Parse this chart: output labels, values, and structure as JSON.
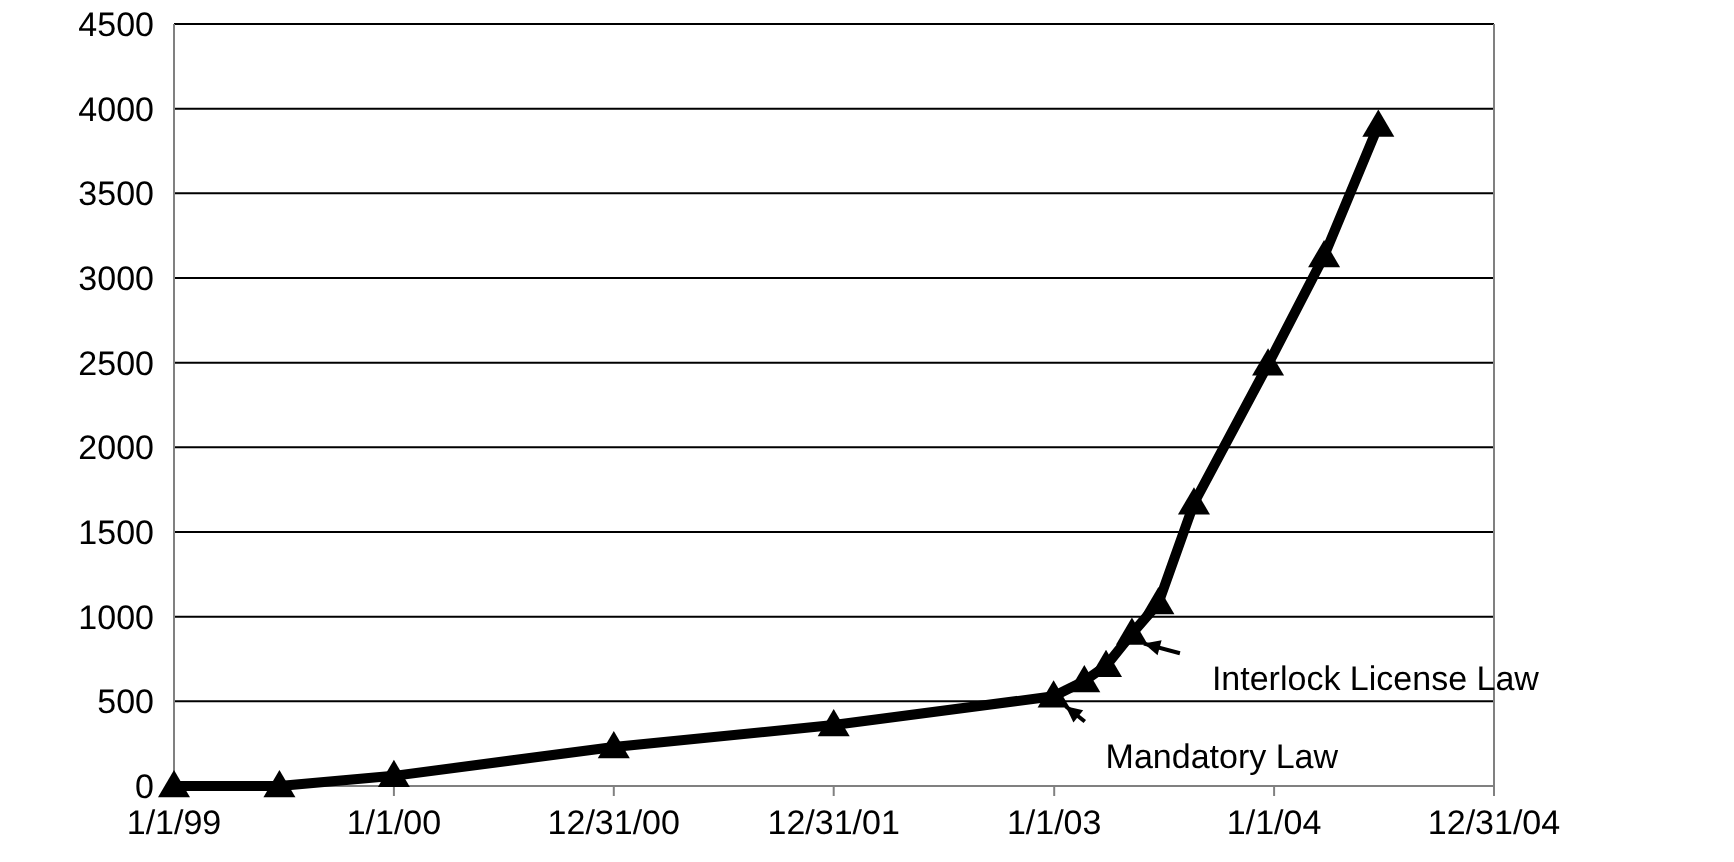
{
  "chart_data": {
    "type": "line",
    "x": [
      "1999-01-01",
      "1999-06-25",
      "2000-01-01",
      "2000-12-31",
      "2001-12-31",
      "2002-12-31",
      "2003-02-20",
      "2003-03-28",
      "2003-05-10",
      "2003-06-23",
      "2003-08-21",
      "2003-12-22",
      "2004-03-24",
      "2004-06-22"
    ],
    "series": [
      {
        "color": "#000000",
        "values": [
          0,
          0,
          60,
          230,
          360,
          530,
          620,
          710,
          900,
          1080,
          1670,
          2490,
          3130,
          3900
        ]
      }
    ],
    "xlim": [
      "1999-01-01",
      "2004-12-31"
    ],
    "xticks": [
      {
        "value": "1999-01-01",
        "label": "1/1/99"
      },
      {
        "value": "2000-01-01",
        "label": "1/1/00"
      },
      {
        "value": "2000-12-31",
        "label": "12/31/00"
      },
      {
        "value": "2001-12-31",
        "label": "12/31/01"
      },
      {
        "value": "2003-01-01",
        "label": "1/1/03"
      },
      {
        "value": "2004-01-01",
        "label": "1/1/04"
      },
      {
        "value": "2004-12-31",
        "label": "12/31/04"
      }
    ],
    "ylim": [
      0,
      4500
    ],
    "yticks": [
      0,
      500,
      1000,
      1500,
      2000,
      2500,
      3000,
      3500,
      4000,
      4500
    ],
    "grid": "y",
    "marker": "triangle",
    "line_style": "solid",
    "annotations": [
      {
        "text": "Interlock License Law",
        "x": "2003-05-10",
        "y": 900
      },
      {
        "text": "Mandatory Law",
        "x": "2002-12-31",
        "y": 530
      }
    ]
  }
}
